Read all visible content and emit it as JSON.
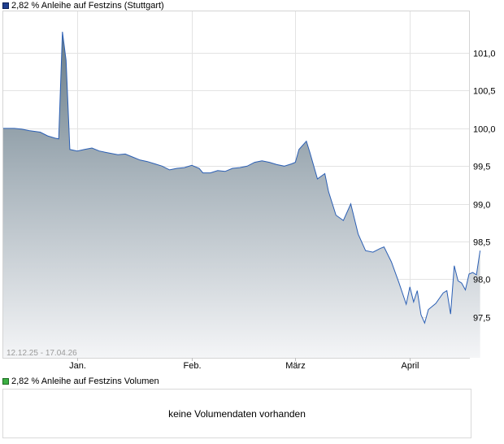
{
  "legend": {
    "price_label": "2,82 % Anleihe auf Festzins (Stuttgart)",
    "price_color": "#1f3f8f",
    "volume_label": "2,82 % Anleihe auf Festzins Volumen",
    "volume_color": "#3cb043"
  },
  "volume": {
    "message": "keine Volumendaten vorhanden"
  },
  "chart_data": {
    "type": "area",
    "period_label": "12.12.25 - 17.04.26",
    "x_ticks": [
      "Jan.",
      "Feb.",
      "März",
      "April"
    ],
    "x_tick_dates": [
      "2026-01-01",
      "2026-02-01",
      "2026-03-01",
      "2026-04-01"
    ],
    "x_range": [
      "2025-12-12",
      "2026-04-17"
    ],
    "y_ticks": [
      "97,5",
      "98,0",
      "98,5",
      "99,0",
      "99,5",
      "100,0",
      "100,5",
      "101,0"
    ],
    "y_tick_values": [
      97.5,
      98.0,
      98.5,
      99.0,
      99.5,
      100.0,
      100.5,
      101.0
    ],
    "ylim": [
      96.96,
      101.55
    ],
    "grid": true,
    "line_color": "#2b5fb4",
    "series": [
      {
        "name": "2,82 % Anleihe auf Festzins (Stuttgart)",
        "points": [
          [
            "2025-12-12",
            100.0
          ],
          [
            "2025-12-15",
            100.0
          ],
          [
            "2025-12-17",
            99.99
          ],
          [
            "2025-12-19",
            99.97
          ],
          [
            "2025-12-22",
            99.95
          ],
          [
            "2025-12-24",
            99.9
          ],
          [
            "2025-12-26",
            99.87
          ],
          [
            "2025-12-27",
            99.86
          ],
          [
            "2025-12-28",
            101.28
          ],
          [
            "2025-12-29",
            100.9
          ],
          [
            "2025-12-30",
            99.72
          ],
          [
            "2026-01-01",
            99.7
          ],
          [
            "2026-01-03",
            99.72
          ],
          [
            "2026-01-05",
            99.74
          ],
          [
            "2026-01-07",
            99.7
          ],
          [
            "2026-01-09",
            99.68
          ],
          [
            "2026-01-12",
            99.65
          ],
          [
            "2026-01-14",
            99.66
          ],
          [
            "2026-01-16",
            99.62
          ],
          [
            "2026-01-18",
            99.58
          ],
          [
            "2026-01-20",
            99.56
          ],
          [
            "2026-01-22",
            99.53
          ],
          [
            "2026-01-24",
            99.5
          ],
          [
            "2026-01-26",
            99.45
          ],
          [
            "2026-01-28",
            99.47
          ],
          [
            "2026-01-30",
            99.48
          ],
          [
            "2026-02-01",
            99.51
          ],
          [
            "2026-02-03",
            99.47
          ],
          [
            "2026-02-04",
            99.41
          ],
          [
            "2026-02-06",
            99.41
          ],
          [
            "2026-02-08",
            99.44
          ],
          [
            "2026-02-10",
            99.43
          ],
          [
            "2026-02-12",
            99.47
          ],
          [
            "2026-02-14",
            99.48
          ],
          [
            "2026-02-16",
            99.5
          ],
          [
            "2026-02-18",
            99.55
          ],
          [
            "2026-02-20",
            99.57
          ],
          [
            "2026-02-22",
            99.55
          ],
          [
            "2026-02-24",
            99.52
          ],
          [
            "2026-02-26",
            99.5
          ],
          [
            "2026-02-28",
            99.53
          ],
          [
            "2026-03-01",
            99.55
          ],
          [
            "2026-03-02",
            99.72
          ],
          [
            "2026-03-04",
            99.83
          ],
          [
            "2026-03-05",
            99.67
          ],
          [
            "2026-03-07",
            99.33
          ],
          [
            "2026-03-09",
            99.4
          ],
          [
            "2026-03-10",
            99.16
          ],
          [
            "2026-03-12",
            98.85
          ],
          [
            "2026-03-14",
            98.78
          ],
          [
            "2026-03-16",
            99.0
          ],
          [
            "2026-03-18",
            98.6
          ],
          [
            "2026-03-20",
            98.38
          ],
          [
            "2026-03-22",
            98.36
          ],
          [
            "2026-03-24",
            98.41
          ],
          [
            "2026-03-25",
            98.43
          ],
          [
            "2026-03-27",
            98.23
          ],
          [
            "2026-03-29",
            97.96
          ],
          [
            "2026-03-31",
            97.67
          ],
          [
            "2026-04-01",
            97.9
          ],
          [
            "2026-04-02",
            97.7
          ],
          [
            "2026-04-03",
            97.85
          ],
          [
            "2026-04-04",
            97.53
          ],
          [
            "2026-04-05",
            97.42
          ],
          [
            "2026-04-06",
            97.6
          ],
          [
            "2026-04-08",
            97.68
          ],
          [
            "2026-04-10",
            97.82
          ],
          [
            "2026-04-11",
            97.85
          ],
          [
            "2026-04-12",
            97.54
          ],
          [
            "2026-04-13",
            98.18
          ],
          [
            "2026-04-14",
            97.98
          ],
          [
            "2026-04-15",
            97.95
          ],
          [
            "2026-04-16",
            97.86
          ],
          [
            "2026-04-17",
            98.07
          ],
          [
            "2026-04-18",
            98.09
          ],
          [
            "2026-04-19",
            98.06
          ],
          [
            "2026-04-20",
            98.38
          ]
        ]
      }
    ]
  }
}
